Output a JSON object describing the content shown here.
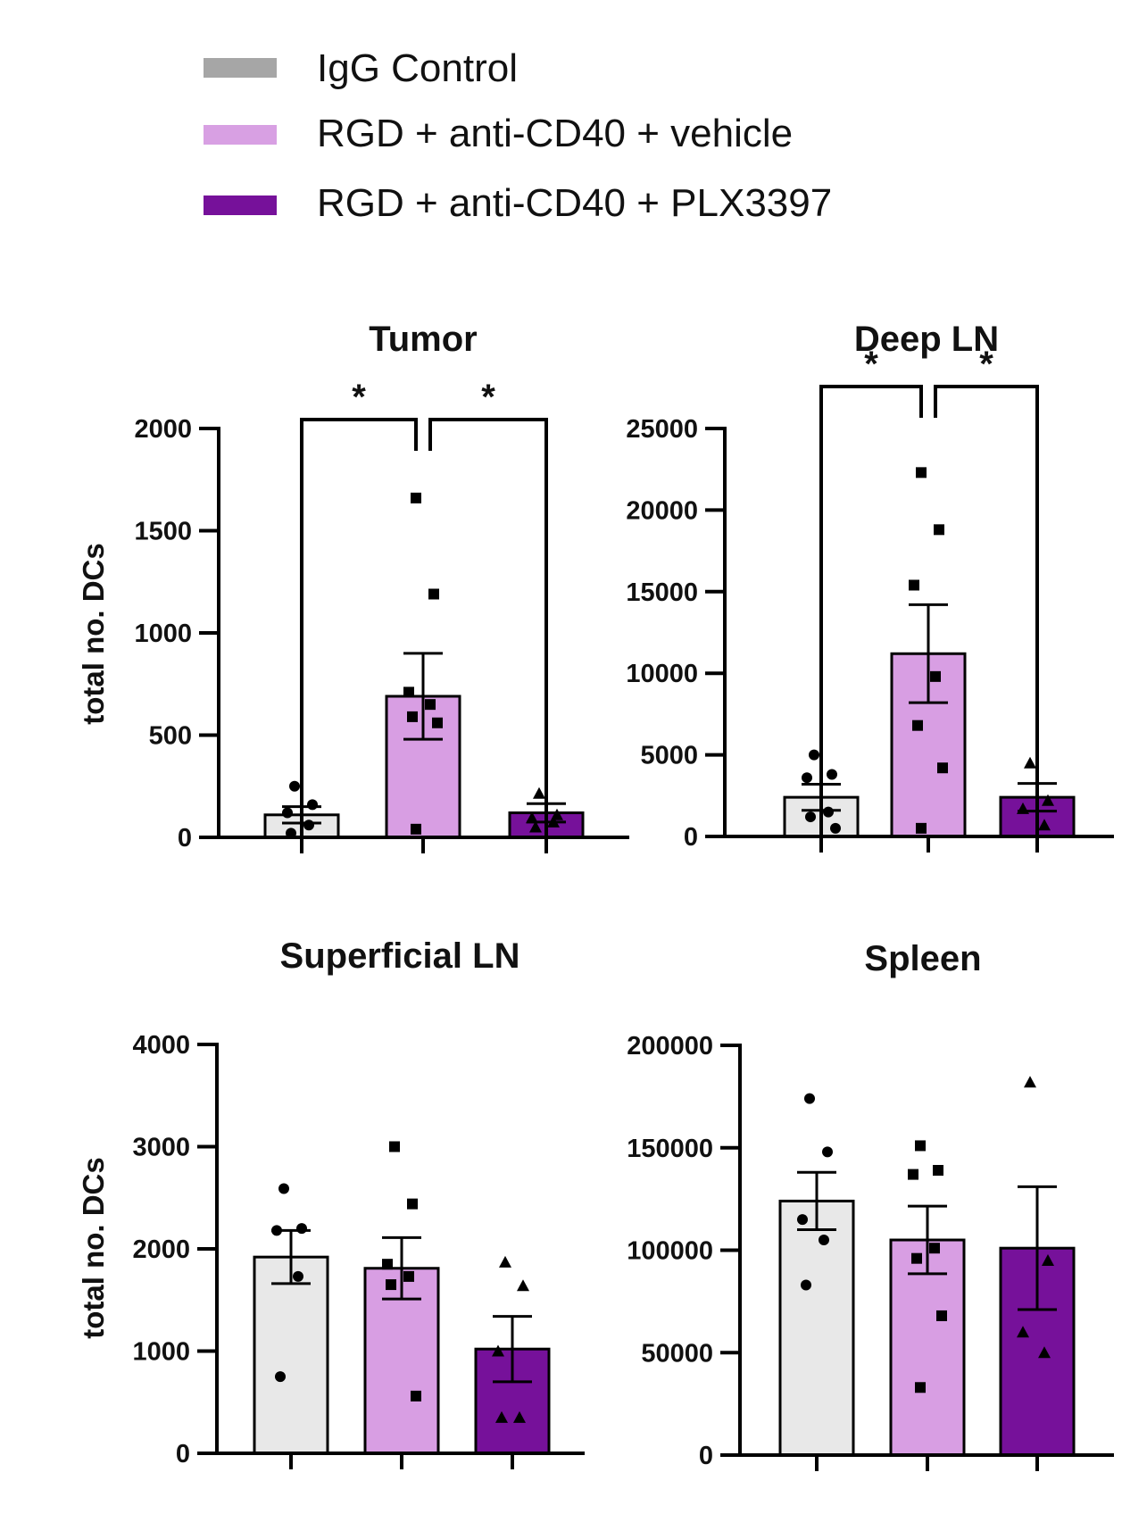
{
  "legend": [
    {
      "label": "IgG Control",
      "color": "#d9d9d9",
      "swatch_color": "#a6a6a6"
    },
    {
      "label": "RGD + anti-CD40 + vehicle",
      "color": "#d8a0e3",
      "swatch_color": "#d8a0e3"
    },
    {
      "label": "RGD + anti-CD40 + PLX3397",
      "color": "#76119a",
      "swatch_color": "#76119a"
    }
  ],
  "bar_colors": [
    "#e8e8e8",
    "#d89ee3",
    "#76119a"
  ],
  "chart_data": [
    {
      "type": "bar",
      "title": "Tumor",
      "ylabel": "total no. DCs",
      "xlabel": "",
      "categories": [
        "IgG Control",
        "RGD + anti-CD40 + vehicle",
        "RGD + anti-CD40 + PLX3397"
      ],
      "values": [
        110,
        690,
        120
      ],
      "sem": [
        40,
        210,
        45
      ],
      "points": [
        [
          250,
          160,
          120,
          60,
          20
        ],
        [
          1660,
          1190,
          710,
          650,
          590,
          560,
          40
        ],
        [
          215,
          110,
          95,
          75,
          50
        ]
      ],
      "markers": [
        "circle",
        "square",
        "triangle"
      ],
      "ylim": [
        0,
        2000
      ],
      "yticks": [
        0,
        500,
        1000,
        1500,
        2000
      ],
      "significance": [
        {
          "from": 0,
          "to": 1,
          "label": "*"
        },
        {
          "from": 1,
          "to": 2,
          "label": "*"
        }
      ]
    },
    {
      "type": "bar",
      "title": "Deep LN",
      "ylabel": "",
      "xlabel": "",
      "categories": [
        "IgG Control",
        "RGD + anti-CD40 + vehicle",
        "RGD + anti-CD40 + PLX3397"
      ],
      "values": [
        2400,
        11200,
        2400
      ],
      "sem": [
        800,
        3000,
        850
      ],
      "points": [
        [
          5000,
          3800,
          3600,
          1500,
          1200,
          500
        ],
        [
          22300,
          18800,
          15400,
          9800,
          6800,
          4200,
          500
        ],
        [
          4500,
          2200,
          1700,
          700
        ]
      ],
      "markers": [
        "circle",
        "square",
        "triangle"
      ],
      "ylim": [
        0,
        25000
      ],
      "yticks": [
        0,
        5000,
        10000,
        15000,
        20000,
        25000
      ],
      "significance": [
        {
          "from": 0,
          "to": 1,
          "label": "*"
        },
        {
          "from": 1,
          "to": 2,
          "label": "*"
        }
      ]
    },
    {
      "type": "bar",
      "title": "Superficial LN",
      "ylabel": "total no. DCs",
      "xlabel": "",
      "categories": [
        "IgG Control",
        "RGD + anti-CD40 + vehicle",
        "RGD + anti-CD40 + PLX3397"
      ],
      "values": [
        1920,
        1810,
        1020
      ],
      "sem": [
        260,
        300,
        320
      ],
      "points": [
        [
          2590,
          2200,
          2180,
          1730,
          750
        ],
        [
          3000,
          2440,
          1850,
          1730,
          1650,
          560
        ],
        [
          1870,
          1640,
          1000,
          350,
          350
        ]
      ],
      "markers": [
        "circle",
        "square",
        "triangle"
      ],
      "ylim": [
        0,
        4000
      ],
      "yticks": [
        0,
        1000,
        2000,
        3000,
        4000
      ],
      "significance": []
    },
    {
      "type": "bar",
      "title": "Spleen",
      "ylabel": "",
      "xlabel": "",
      "categories": [
        "IgG Control",
        "RGD + anti-CD40 + vehicle",
        "RGD + anti-CD40 + PLX3397"
      ],
      "values": [
        124000,
        105000,
        101000
      ],
      "sem": [
        14000,
        16500,
        30000
      ],
      "points": [
        [
          174000,
          148000,
          115000,
          105000,
          83000
        ],
        [
          151000,
          139000,
          137000,
          101000,
          96000,
          68000,
          33000
        ],
        [
          182000,
          95000,
          60000,
          50000
        ]
      ],
      "markers": [
        "circle",
        "square",
        "triangle"
      ],
      "ylim": [
        0,
        200000
      ],
      "yticks": [
        0,
        50000,
        100000,
        150000,
        200000
      ],
      "significance": []
    }
  ]
}
